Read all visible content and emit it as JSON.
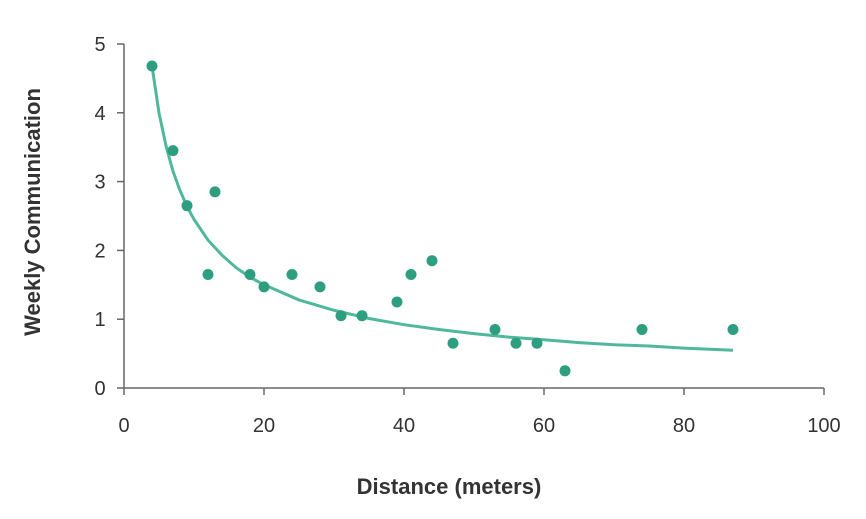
{
  "chart_data": {
    "type": "scatter",
    "title": "",
    "xlabel": "Distance (meters)",
    "ylabel": "Weekly Communication",
    "xlim": [
      0,
      100
    ],
    "ylim": [
      0,
      5
    ],
    "x_ticks": [
      0,
      20,
      40,
      60,
      80,
      100
    ],
    "y_ticks": [
      0,
      1,
      2,
      3,
      4,
      5
    ],
    "grid": false,
    "legend": "none",
    "point_color": "#2e9e80",
    "trend_color": "#4fb89c",
    "points": [
      {
        "x": 4,
        "y": 4.68
      },
      {
        "x": 7,
        "y": 3.45
      },
      {
        "x": 9,
        "y": 2.65
      },
      {
        "x": 12,
        "y": 1.65
      },
      {
        "x": 13,
        "y": 2.85
      },
      {
        "x": 18,
        "y": 1.65
      },
      {
        "x": 20,
        "y": 1.47
      },
      {
        "x": 24,
        "y": 1.65
      },
      {
        "x": 28,
        "y": 1.47
      },
      {
        "x": 31,
        "y": 1.05
      },
      {
        "x": 34,
        "y": 1.05
      },
      {
        "x": 39,
        "y": 1.25
      },
      {
        "x": 41,
        "y": 1.65
      },
      {
        "x": 44,
        "y": 1.85
      },
      {
        "x": 47,
        "y": 0.65
      },
      {
        "x": 53,
        "y": 0.85
      },
      {
        "x": 56,
        "y": 0.65
      },
      {
        "x": 59,
        "y": 0.65
      },
      {
        "x": 63,
        "y": 0.25
      },
      {
        "x": 74,
        "y": 0.85
      },
      {
        "x": 87,
        "y": 0.85
      }
    ],
    "trend_line": {
      "type": "power",
      "x": [
        4,
        5,
        6,
        7,
        8,
        9,
        10,
        12,
        14,
        16,
        18,
        20,
        25,
        30,
        35,
        40,
        45,
        50,
        55,
        60,
        65,
        70,
        75,
        80,
        87
      ],
      "y": [
        4.68,
        4.0,
        3.52,
        3.15,
        2.87,
        2.64,
        2.45,
        2.15,
        1.93,
        1.75,
        1.61,
        1.5,
        1.28,
        1.13,
        1.01,
        0.92,
        0.85,
        0.79,
        0.74,
        0.7,
        0.66,
        0.63,
        0.61,
        0.58,
        0.55
      ]
    }
  }
}
